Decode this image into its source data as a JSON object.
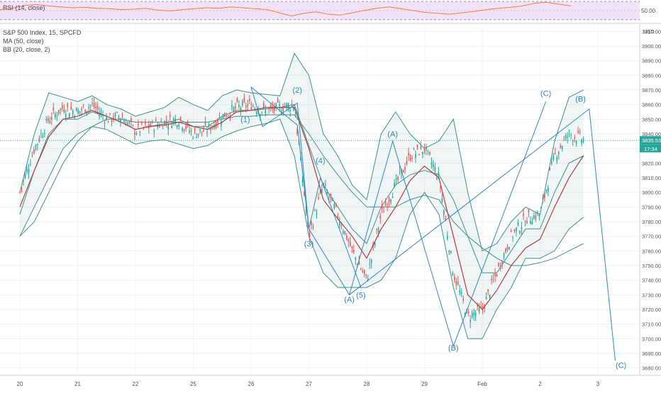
{
  "chart_data": [
    {
      "type": "line",
      "panel": "rsi",
      "title": "RSI (14, close)",
      "ylim": [
        25,
        70
      ],
      "y_ticks": [
        50
      ],
      "y_tick_labels": [
        "50.00"
      ],
      "band_levels": [
        30,
        70
      ],
      "series": [
        {
          "name": "RSI (14, close)",
          "color": "#f57c3a",
          "values": [
            52,
            55,
            61,
            63,
            60,
            58,
            56,
            57,
            55,
            54,
            52,
            53,
            55,
            51,
            49,
            52,
            54,
            56,
            55,
            58,
            56,
            54,
            52,
            45,
            38,
            44,
            47,
            42,
            40,
            45,
            50,
            55,
            58,
            54,
            50,
            46,
            44,
            42,
            45,
            48,
            52,
            55,
            57,
            60,
            66,
            68,
            64,
            60
          ]
        }
      ]
    },
    {
      "type": "candlestick",
      "panel": "price",
      "title": "S&P 500 Index, 15, SPCFD",
      "ylim": [
        3675,
        3915
      ],
      "y_ticks": [
        3680,
        3690,
        3700,
        3710,
        3720,
        3730,
        3740,
        3750,
        3760,
        3770,
        3780,
        3790,
        3800,
        3810,
        3820,
        3830,
        3840,
        3850,
        3860,
        3870,
        3880,
        3890,
        3900,
        3910
      ],
      "y_unit": "USD",
      "x_tick_labels": [
        "20",
        "21",
        "22",
        "25",
        "26",
        "27",
        "28",
        "29",
        "Feb",
        "2",
        "3"
      ],
      "last_price_label": "3835.53",
      "countdown_label": "17:34",
      "indicators": [
        "MA (50, close)",
        "BB (20, close, 2)"
      ],
      "close_series": {
        "name": "S&P 500 Index",
        "x": [
          0,
          0.25,
          0.5,
          0.75,
          1,
          1.25,
          1.5,
          1.75,
          2,
          2.25,
          2.5,
          2.75,
          3,
          3.25,
          3.5,
          3.75,
          4,
          4.25,
          4.5,
          4.75,
          5,
          5.25,
          5.5,
          5.75,
          6,
          6.25,
          6.5,
          6.75,
          7,
          7.25,
          7.5,
          7.75,
          8,
          8.25,
          8.5,
          8.75,
          9,
          9.25,
          9.5,
          9.75
        ],
        "values": [
          3800,
          3830,
          3850,
          3858,
          3855,
          3860,
          3850,
          3852,
          3842,
          3845,
          3848,
          3850,
          3840,
          3843,
          3852,
          3858,
          3860,
          3855,
          3858,
          3860,
          3770,
          3805,
          3785,
          3760,
          3740,
          3785,
          3805,
          3825,
          3830,
          3810,
          3745,
          3715,
          3720,
          3745,
          3770,
          3782,
          3785,
          3825,
          3840,
          3836
        ]
      },
      "moving_average": {
        "name": "MA (50, close)",
        "color": "#b23b3b",
        "values": [
          3790,
          3815,
          3838,
          3850,
          3852,
          3856,
          3852,
          3848,
          3843,
          3845,
          3846,
          3848,
          3845,
          3843,
          3848,
          3855,
          3856,
          3858,
          3858,
          3858,
          3830,
          3795,
          3782,
          3770,
          3755,
          3775,
          3790,
          3808,
          3818,
          3810,
          3770,
          3730,
          3720,
          3733,
          3750,
          3762,
          3768,
          3790,
          3810,
          3825
        ]
      },
      "bollinger_upper": {
        "name": "BB (20, close, 2)",
        "color": "#3f8f8f",
        "values": [
          3800,
          3840,
          3868,
          3865,
          3862,
          3866,
          3860,
          3857,
          3852,
          3855,
          3858,
          3865,
          3860,
          3856,
          3866,
          3870,
          3868,
          3867,
          3866,
          3895,
          3880,
          3840,
          3825,
          3805,
          3795,
          3840,
          3855,
          3840,
          3830,
          3835,
          3850,
          3800,
          3760,
          3765,
          3780,
          3790,
          3785,
          3835,
          3865,
          3870
        ]
      },
      "bollinger_basis": {
        "name": "BB basis",
        "color": "#3f8f8f",
        "values": [
          3785,
          3815,
          3840,
          3850,
          3850,
          3855,
          3852,
          3848,
          3843,
          3845,
          3847,
          3850,
          3845,
          3845,
          3852,
          3856,
          3856,
          3857,
          3858,
          3860,
          3832,
          3805,
          3790,
          3775,
          3765,
          3790,
          3805,
          3812,
          3815,
          3812,
          3795,
          3770,
          3745,
          3745,
          3760,
          3775,
          3775,
          3800,
          3820,
          3825
        ]
      },
      "bollinger_lower": {
        "name": "BB lower",
        "color": "#3f8f8f",
        "values": [
          3770,
          3790,
          3810,
          3830,
          3840,
          3845,
          3843,
          3838,
          3833,
          3835,
          3836,
          3833,
          3830,
          3832,
          3838,
          3842,
          3845,
          3847,
          3850,
          3825,
          3770,
          3745,
          3735,
          3735,
          3735,
          3740,
          3755,
          3785,
          3800,
          3785,
          3735,
          3700,
          3700,
          3720,
          3735,
          3755,
          3755,
          3760,
          3775,
          3783
        ]
      },
      "slow_ma": {
        "name": "slow MA",
        "color": "#3f8f8f",
        "values": [
          3770,
          3780,
          3800,
          3820,
          3835,
          3845,
          3850,
          3850,
          3848,
          3848,
          3848,
          3848,
          3848,
          3848,
          3850,
          3852,
          3852,
          3853,
          3853,
          3853,
          3840,
          3825,
          3812,
          3800,
          3790,
          3790,
          3790,
          3795,
          3798,
          3795,
          3780,
          3770,
          3762,
          3755,
          3750,
          3750,
          3752,
          3755,
          3760,
          3765
        ]
      },
      "wave_annotations": [
        {
          "label": "(1)",
          "x": 3.9,
          "y": 3848,
          "color": "#2e86c1"
        },
        {
          "label": "(2)",
          "x": 4.8,
          "y": 3868,
          "color": "#2e86c1"
        },
        {
          "label": "(3)",
          "x": 5.0,
          "y": 3763,
          "color": "#2e86c1"
        },
        {
          "label": "(4)",
          "x": 5.2,
          "y": 3820,
          "color": "#2e86c1"
        },
        {
          "label": "(5)",
          "x": 5.9,
          "y": 3728,
          "color": "#2e86c1"
        },
        {
          "label": "(A)",
          "x": 5.7,
          "y": 3725,
          "color": "#2e86c1"
        },
        {
          "label": "(A)",
          "x": 6.45,
          "y": 3838,
          "color": "#2e86c1"
        },
        {
          "label": "(B)",
          "x": 7.5,
          "y": 3692,
          "color": "#2e86c1"
        },
        {
          "label": "(C)",
          "x": 9.1,
          "y": 3866,
          "color": "#2e86c1"
        },
        {
          "label": "(B)",
          "x": 9.7,
          "y": 3862,
          "color": "#2e86c1"
        },
        {
          "label": "(C)",
          "x": 10.4,
          "y": 3680,
          "color": "#2e86c1"
        }
      ],
      "wave_paths": [
        {
          "x": [
            4.0,
            4.8,
            5.0,
            5.7,
            6.45,
            7.5,
            9.1
          ],
          "y": [
            3872,
            3846,
            3775,
            3730,
            3835,
            3695,
            3862
          ],
          "color": "#2e86c1"
        },
        {
          "x": [
            4.0,
            4.2,
            4.8,
            5.0,
            5.2,
            5.9
          ],
          "y": [
            3872,
            3845,
            3861,
            3775,
            3810,
            3735
          ],
          "color": "#2e86c1"
        },
        {
          "x": [
            5.7,
            9.85,
            10.3
          ],
          "y": [
            3730,
            3857,
            3685
          ],
          "color": "#2e86c1"
        }
      ]
    }
  ]
}
